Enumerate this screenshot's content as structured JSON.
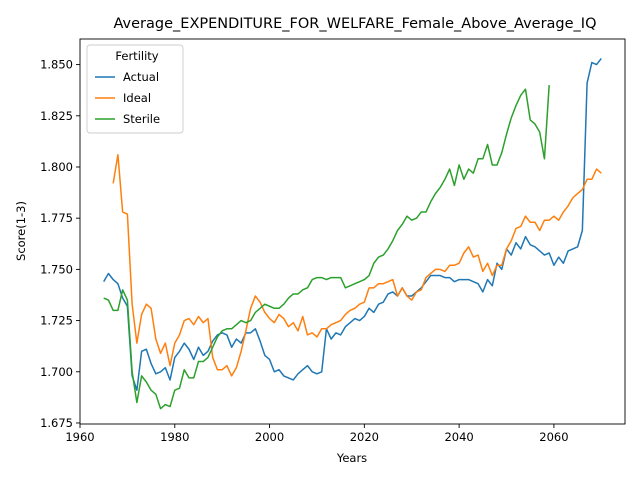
{
  "chart_data": {
    "type": "line",
    "title": "Average_EXPENDITURE_FOR_WELFARE_Female_Above_Average_IQ",
    "xlabel": "Years",
    "ylabel": "Score(1-3)",
    "xlim": [
      1960,
      2075
    ],
    "ylim": [
      1.6745,
      1.8625
    ],
    "xticks": [
      1960,
      1980,
      2000,
      2020,
      2040,
      2060
    ],
    "yticks": [
      1.675,
      1.7,
      1.725,
      1.75,
      1.775,
      1.8,
      1.825,
      1.85
    ],
    "ytick_labels": [
      "1.675",
      "1.700",
      "1.725",
      "1.750",
      "1.775",
      "1.800",
      "1.825",
      "1.850"
    ],
    "grid": false,
    "legend": {
      "title": "Fertility",
      "placement": "top-left"
    },
    "series": [
      {
        "name": "Actual",
        "color": "#1f77b4",
        "x_start": 1965,
        "values": [
          1.744,
          1.748,
          1.745,
          1.743,
          1.736,
          1.732,
          1.698,
          1.691,
          1.71,
          1.711,
          1.704,
          1.699,
          1.7,
          1.702,
          1.696,
          1.707,
          1.71,
          1.714,
          1.711,
          1.706,
          1.712,
          1.708,
          1.71,
          1.715,
          1.718,
          1.719,
          1.718,
          1.712,
          1.716,
          1.714,
          1.719,
          1.719,
          1.721,
          1.715,
          1.708,
          1.706,
          1.7,
          1.701,
          1.698,
          1.697,
          1.696,
          1.699,
          1.701,
          1.703,
          1.7,
          1.699,
          1.7,
          1.721,
          1.716,
          1.719,
          1.718,
          1.722,
          1.724,
          1.726,
          1.725,
          1.727,
          1.731,
          1.729,
          1.733,
          1.734,
          1.738,
          1.739,
          1.737,
          1.741,
          1.737,
          1.737,
          1.739,
          1.741,
          1.744,
          1.747,
          1.747,
          1.747,
          1.746,
          1.746,
          1.744,
          1.745,
          1.745,
          1.745,
          1.744,
          1.743,
          1.739,
          1.745,
          1.742,
          1.753,
          1.75,
          1.76,
          1.757,
          1.763,
          1.76,
          1.766,
          1.762,
          1.761,
          1.759,
          1.757,
          1.758,
          1.752,
          1.756,
          1.753,
          1.759,
          1.76,
          1.761,
          1.769,
          1.841,
          1.851,
          1.85,
          1.853
        ]
      },
      {
        "name": "Ideal",
        "color": "#ff7f0e",
        "x_start": 1967,
        "values": [
          1.792,
          1.806,
          1.778,
          1.777,
          1.733,
          1.714,
          1.728,
          1.733,
          1.731,
          1.716,
          1.709,
          1.714,
          1.703,
          1.714,
          1.718,
          1.725,
          1.726,
          1.723,
          1.727,
          1.724,
          1.726,
          1.707,
          1.701,
          1.701,
          1.703,
          1.698,
          1.702,
          1.71,
          1.72,
          1.731,
          1.737,
          1.734,
          1.729,
          1.726,
          1.724,
          1.728,
          1.726,
          1.722,
          1.724,
          1.72,
          1.727,
          1.718,
          1.719,
          1.717,
          1.721,
          1.721,
          1.723,
          1.724,
          1.725,
          1.728,
          1.73,
          1.731,
          1.733,
          1.734,
          1.741,
          1.741,
          1.743,
          1.743,
          1.744,
          1.745,
          1.737,
          1.741,
          1.737,
          1.735,
          1.739,
          1.74,
          1.746,
          1.748,
          1.75,
          1.75,
          1.749,
          1.752,
          1.752,
          1.753,
          1.758,
          1.761,
          1.756,
          1.757,
          1.749,
          1.753,
          1.747,
          1.752,
          1.752,
          1.76,
          1.764,
          1.77,
          1.771,
          1.776,
          1.773,
          1.773,
          1.769,
          1.774,
          1.774,
          1.776,
          1.774,
          1.778,
          1.781,
          1.785,
          1.787,
          1.789,
          1.794,
          1.794,
          1.799,
          1.797
        ]
      },
      {
        "name": "Sterile",
        "color": "#2ca02c",
        "x_start": 1965,
        "values": [
          1.736,
          1.735,
          1.73,
          1.73,
          1.74,
          1.735,
          1.7,
          1.685,
          1.698,
          1.695,
          1.691,
          1.689,
          1.682,
          1.684,
          1.683,
          1.691,
          1.692,
          1.701,
          1.697,
          1.697,
          1.705,
          1.705,
          1.707,
          1.712,
          1.717,
          1.72,
          1.721,
          1.721,
          1.723,
          1.725,
          1.724,
          1.725,
          1.729,
          1.731,
          1.733,
          1.732,
          1.731,
          1.731,
          1.733,
          1.736,
          1.738,
          1.738,
          1.74,
          1.741,
          1.745,
          1.746,
          1.746,
          1.745,
          1.746,
          1.746,
          1.746,
          1.741,
          1.742,
          1.743,
          1.744,
          1.745,
          1.747,
          1.753,
          1.756,
          1.757,
          1.76,
          1.764,
          1.769,
          1.772,
          1.776,
          1.774,
          1.775,
          1.778,
          1.778,
          1.783,
          1.787,
          1.79,
          1.794,
          1.799,
          1.791,
          1.801,
          1.794,
          1.799,
          1.797,
          1.804,
          1.804,
          1.811,
          1.801,
          1.801,
          1.807,
          1.816,
          1.824,
          1.83,
          1.835,
          1.838,
          1.823,
          1.821,
          1.817,
          1.804,
          1.84
        ]
      }
    ]
  }
}
